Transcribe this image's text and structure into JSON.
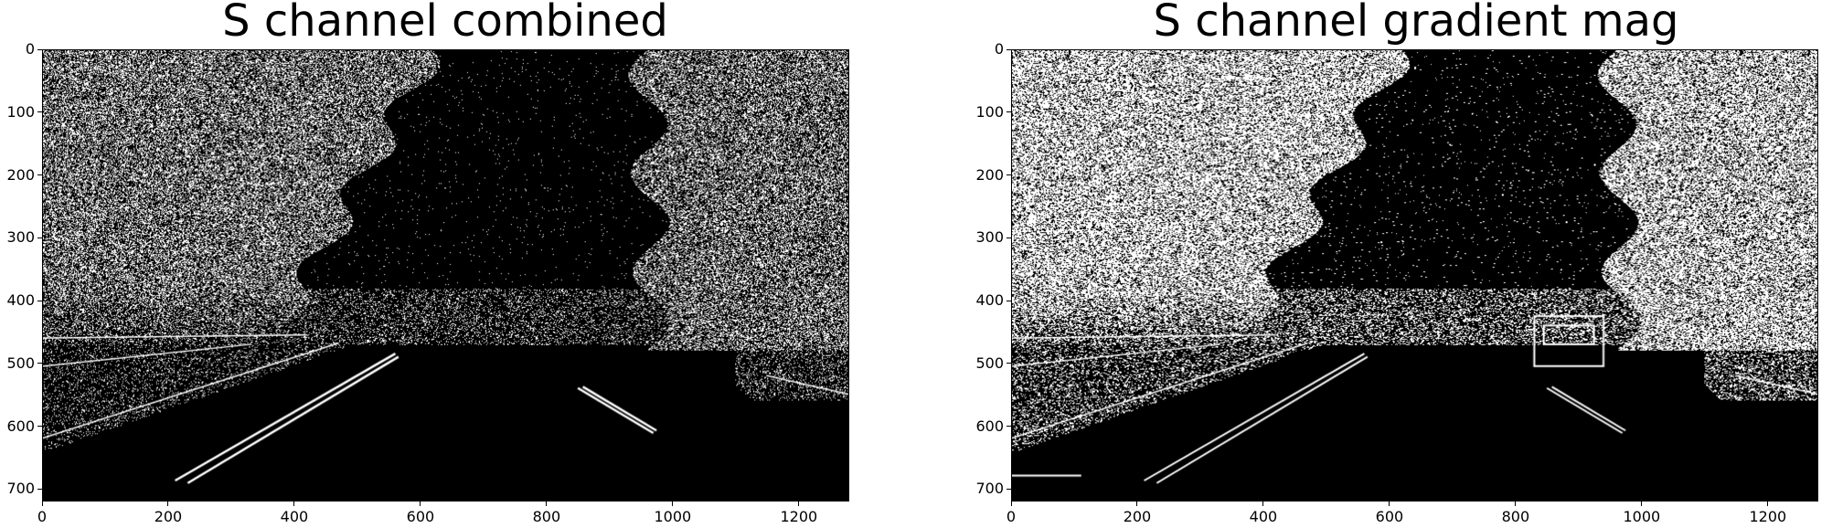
{
  "figure": {
    "background": "#ffffff",
    "pixel_on_color": "#ffffff",
    "pixel_off_color": "#000000",
    "tick_color": "#000000"
  },
  "panels": [
    {
      "id": "combined",
      "title": "S channel combined",
      "x_ticks": [
        "0",
        "200",
        "400",
        "600",
        "800",
        "1000",
        "1200"
      ],
      "y_ticks": [
        "0",
        "100",
        "200",
        "300",
        "400",
        "500",
        "600",
        "700"
      ],
      "image_extent": {
        "x": [
          0,
          1280
        ],
        "y": [
          0,
          720
        ]
      },
      "content": "binary threshold image of road scene with trees and lane lines"
    },
    {
      "id": "gradient-mag",
      "title": "S channel gradient mag",
      "x_ticks": [
        "0",
        "200",
        "400",
        "600",
        "800",
        "1000",
        "1200"
      ],
      "y_ticks": [
        "0",
        "100",
        "200",
        "300",
        "400",
        "500",
        "600",
        "700"
      ],
      "image_extent": {
        "x": [
          0,
          1280
        ],
        "y": [
          0,
          720
        ]
      },
      "content": "binary gradient magnitude image of road scene with trees, cars and lane lines"
    }
  ]
}
